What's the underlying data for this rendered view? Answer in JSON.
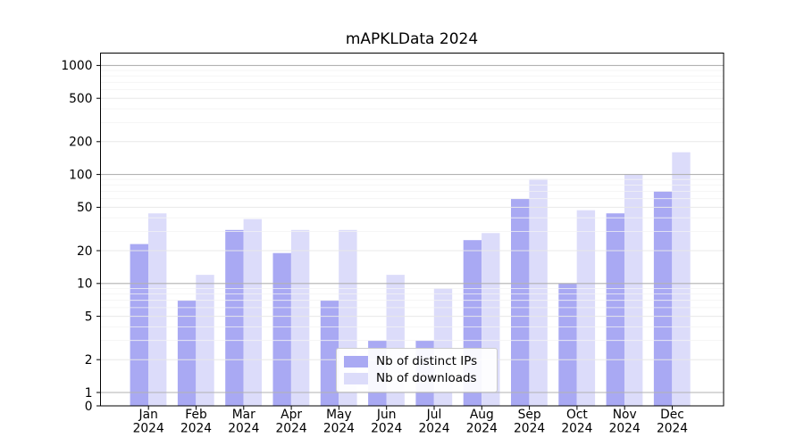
{
  "title": "mAPKLData 2024",
  "chart_data": {
    "type": "bar",
    "title": "mAPKLData 2024",
    "categories": [
      "Jan 2024",
      "Feb 2024",
      "Mar 2024",
      "Apr 2024",
      "May 2024",
      "Jun 2024",
      "Jul 2024",
      "Aug 2024",
      "Sep 2024",
      "Oct 2024",
      "Nov 2024",
      "Dec 2024"
    ],
    "series": [
      {
        "name": "Nb of distinct IPs",
        "color": "#a9a9f3",
        "values": [
          23,
          7,
          31,
          19,
          7,
          3,
          3,
          25,
          60,
          10,
          44,
          70
        ]
      },
      {
        "name": "Nb of downloads",
        "color": "#dcdcfa",
        "values": [
          44,
          12,
          39,
          31,
          31,
          12,
          9,
          29,
          91,
          47,
          101,
          160
        ]
      }
    ],
    "xlabel": "",
    "ylabel": "",
    "yscale": "symlog",
    "yticks": [
      0,
      1,
      2,
      5,
      10,
      20,
      50,
      100,
      200,
      500,
      1000
    ],
    "ylim": [
      0,
      1300
    ],
    "grid": "on",
    "legend_position": "lower center"
  },
  "colors": {
    "axis": "#000000",
    "grid_decade": "#b2b2b2",
    "grid_major": "#e8e8e8",
    "grid_minor": "#f3f3f3",
    "legend_border": "#cccccc"
  }
}
